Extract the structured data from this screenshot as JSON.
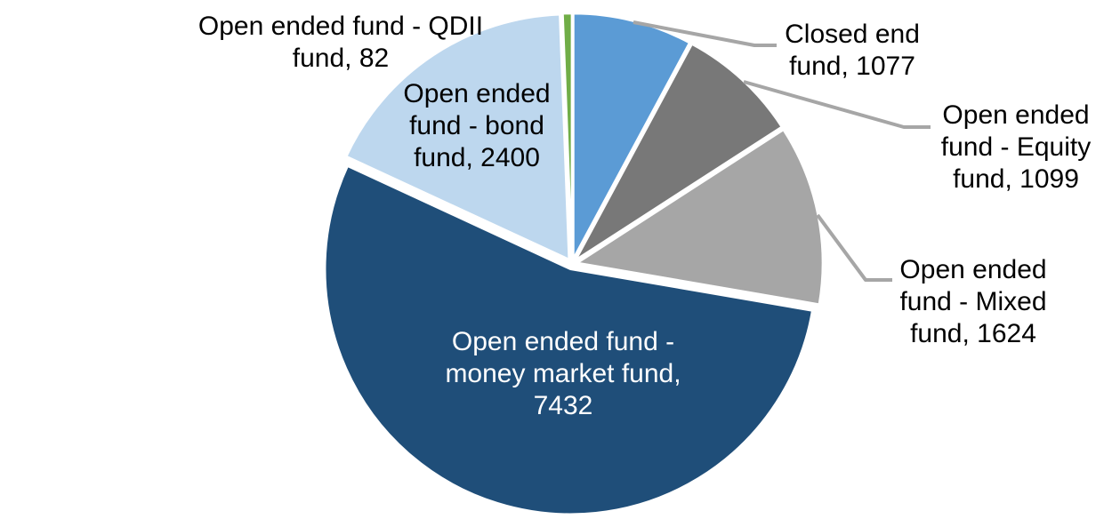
{
  "chart_data": {
    "type": "pie",
    "title": "",
    "direction": "clockwise",
    "start_angle_deg": 0,
    "total": 13714,
    "legend_position": "none",
    "leader_line_color": "#A6A6A6",
    "background_color": "#FFFFFF",
    "slices": [
      {
        "id": "closed-end-fund",
        "label": "Closed end fund",
        "value": 1077,
        "color": "#5B9BD5",
        "label_text": "Closed end fund, 1077",
        "label_lines": [
          "Closed end",
          "fund, 1077"
        ],
        "label_color": "#000000",
        "label_placement": "outside"
      },
      {
        "id": "open-ended-equity-fund",
        "label": "Open ended fund - Equity fund",
        "value": 1099,
        "color": "#787878",
        "label_text": "Open ended fund - Equity fund, 1099",
        "label_lines": [
          "Open ended",
          "fund - Equity",
          "fund, 1099"
        ],
        "label_color": "#000000",
        "label_placement": "outside"
      },
      {
        "id": "open-ended-mixed-fund",
        "label": "Open ended fund - Mixed fund",
        "value": 1624,
        "color": "#A6A6A6",
        "label_text": "Open ended fund - Mixed fund, 1624",
        "label_lines": [
          "Open ended",
          "fund - Mixed",
          "fund, 1624"
        ],
        "label_color": "#000000",
        "label_placement": "outside"
      },
      {
        "id": "open-ended-money-market-fund",
        "label": "Open ended fund - money market fund",
        "value": 7432,
        "color": "#1F4E79",
        "label_text": "Open ended fund - money market fund, 7432",
        "label_lines": [
          "Open ended fund -",
          "money market fund,",
          "7432"
        ],
        "label_color": "#FFFFFF",
        "label_placement": "inside"
      },
      {
        "id": "open-ended-bond-fund",
        "label": "Open ended fund - bond fund",
        "value": 2400,
        "color": "#BDD7EE",
        "label_text": "Open ended fund - bond fund, 2400",
        "label_lines": [
          "Open ended",
          "fund - bond",
          "fund, 2400"
        ],
        "label_color": "#000000",
        "label_placement": "inside"
      },
      {
        "id": "open-ended-qdii-fund",
        "label": "Open ended fund - QDII fund",
        "value": 82,
        "color": "#70AD47",
        "label_text": "Open ended fund - QDII fund, 82",
        "label_lines": [
          "Open ended fund - QDII",
          "fund, 82"
        ],
        "label_color": "#000000",
        "label_placement": "outside"
      }
    ]
  }
}
